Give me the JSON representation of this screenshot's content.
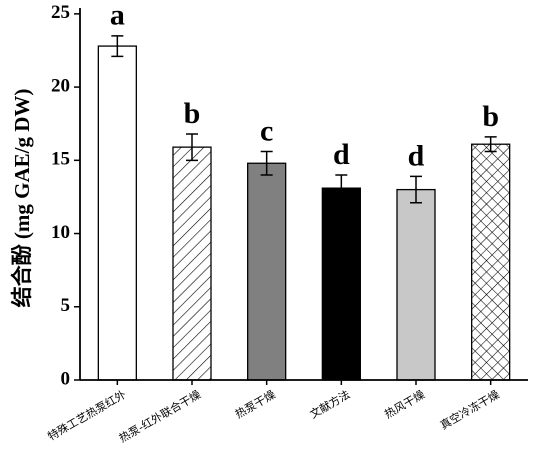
{
  "chart_data": {
    "type": "bar",
    "y_label": "结合酚 (mg GAE/g DW)",
    "categories": [
      "特殊工艺热泵红外",
      "热泵-红外联合干燥",
      "热泵干燥",
      "文献方法",
      "热风干燥",
      "真空冷冻干燥"
    ],
    "values": [
      22.8,
      15.9,
      14.8,
      13.1,
      13.0,
      16.1
    ],
    "errors": [
      0.7,
      0.9,
      0.8,
      0.9,
      0.9,
      0.5
    ],
    "annotations": [
      "a",
      "b",
      "c",
      "d",
      "d",
      "b"
    ],
    "colors": [
      "#ffffff",
      "#ffffff",
      "#808080",
      "#000000",
      "#c8c8c8",
      "#ffffff"
    ],
    "patterns": [
      "none",
      "diagonal",
      "none",
      "none",
      "none",
      "crosshatch"
    ],
    "ylim": [
      0,
      25.4
    ],
    "yticks": [
      0,
      5,
      10,
      15,
      20,
      25
    ]
  }
}
